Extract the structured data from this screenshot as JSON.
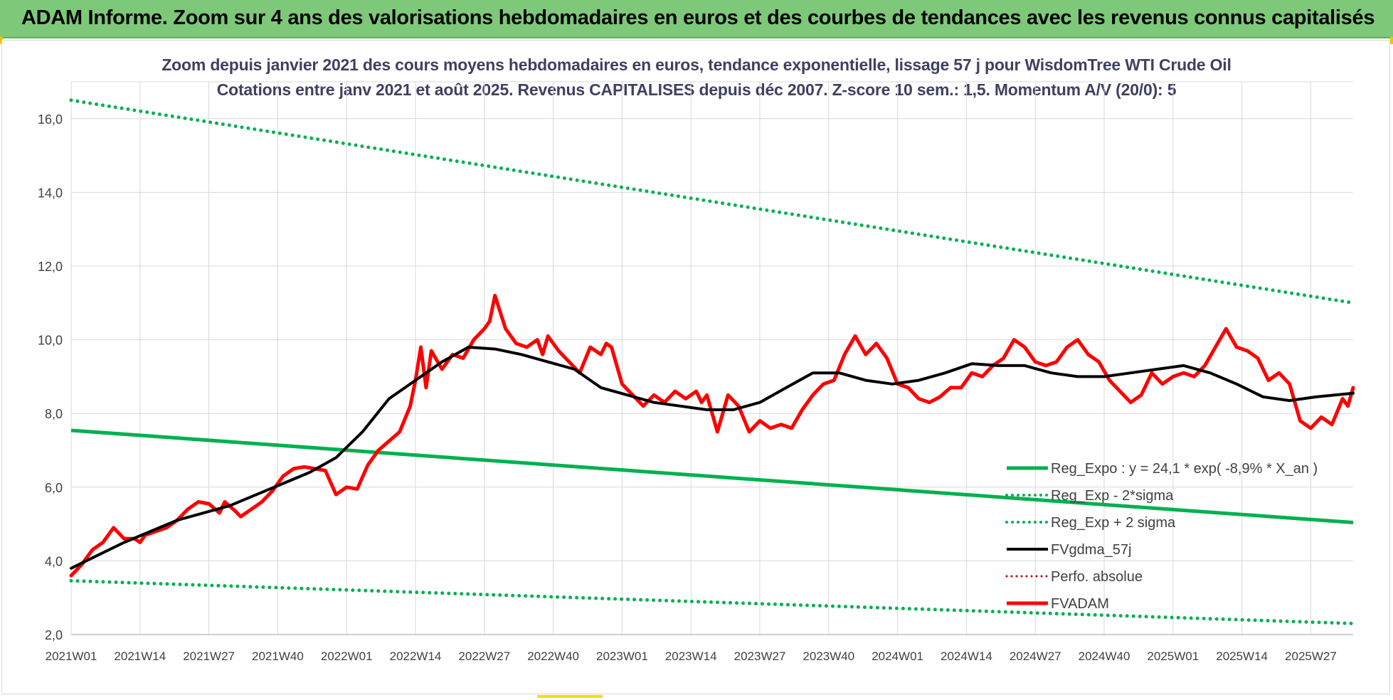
{
  "banner": {
    "title": "ADAM Informe. Zoom sur 4 ans des valorisations hebdomadaires en euros et des courbes de tendances avec les revenus connus capitalisés"
  },
  "colors": {
    "banner": "#7ec87a",
    "reg_expo": "#00b050",
    "fv_adam": "#ff0000",
    "fvgdma": "#000000",
    "perfo": "#c00000",
    "grid": "#d9d9d9"
  },
  "chart_data": {
    "type": "line",
    "title_line1": "Zoom depuis janvier 2021 des cours moyens hebdomadaires en euros, tendance exponentielle, lissage 57 j pour WisdomTree WTI Crude Oil",
    "title_line2": "Cotations entre janv 2021 et août 2025. Revenus CAPITALISES depuis déc 2007. Z-score 10 sem.: 1,5. Momentum A/V (20/0): 5",
    "xlabel": "",
    "ylabel": "",
    "ylim": [
      2.0,
      17.0
    ],
    "yticks": [
      "2,0",
      "4,0",
      "6,0",
      "8,0",
      "10,0",
      "12,0",
      "14,0",
      "16,0"
    ],
    "xticks": [
      "2021W01",
      "2021W14",
      "2021W27",
      "2021W40",
      "2022W01",
      "2022W14",
      "2022W27",
      "2022W40",
      "2023W01",
      "2023W14",
      "2023W27",
      "2023W40",
      "2024W01",
      "2024W14",
      "2024W27",
      "2024W40",
      "2025W01",
      "2025W14",
      "2025W27"
    ],
    "x_weeks_total": 242,
    "grid": true,
    "legend_position": "bottom-right",
    "legend": [
      {
        "label": "Reg_Expo : y = 24,1 * exp( -8,9% *  X_an )",
        "style": "solid-green"
      },
      {
        "label": "Reg_Exp - 2*sigma",
        "style": "dotted-green"
      },
      {
        "label": "Reg_Exp + 2 sigma",
        "style": "dotted-green"
      },
      {
        "label": "FVgdma_57j",
        "style": "solid-black"
      },
      {
        "label": "Perfo. absolue",
        "style": "dotted-red"
      },
      {
        "label": "FVADAM",
        "style": "solid-red"
      }
    ],
    "series": [
      {
        "name": "Reg_Expo : y = 24,1 * exp( -8,9% *  X_an )",
        "x": [
          0,
          242
        ],
        "values": [
          7.54,
          5.04
        ]
      },
      {
        "name": "Reg_Exp - 2*sigma",
        "x": [
          0,
          242
        ],
        "values": [
          3.46,
          2.3
        ]
      },
      {
        "name": "Reg_Exp + 2 sigma",
        "x": [
          0,
          242
        ],
        "values": [
          16.5,
          11.0
        ]
      },
      {
        "name": "FVgdma_57j",
        "x": [
          0,
          10,
          20,
          30,
          40,
          45,
          50,
          55,
          60,
          65,
          70,
          75,
          80,
          85,
          90,
          95,
          100,
          105,
          110,
          115,
          120,
          125,
          130,
          135,
          140,
          145,
          150,
          155,
          160,
          165,
          170,
          175,
          180,
          185,
          190,
          195,
          200,
          205,
          210,
          215,
          220,
          225,
          230,
          235,
          242
        ],
        "values": [
          3.8,
          4.5,
          5.1,
          5.5,
          6.1,
          6.4,
          6.8,
          7.5,
          8.4,
          8.9,
          9.4,
          9.8,
          9.75,
          9.6,
          9.4,
          9.2,
          8.7,
          8.5,
          8.3,
          8.2,
          8.1,
          8.1,
          8.3,
          8.7,
          9.1,
          9.1,
          8.9,
          8.8,
          8.9,
          9.1,
          9.35,
          9.3,
          9.3,
          9.1,
          9.0,
          9.0,
          9.1,
          9.2,
          9.3,
          9.1,
          8.8,
          8.45,
          8.35,
          8.45,
          8.55
        ]
      },
      {
        "name": "FVADAM",
        "x": [
          0,
          2,
          4,
          6,
          8,
          10,
          12,
          13,
          14,
          16,
          18,
          20,
          22,
          24,
          26,
          28,
          29,
          31,
          32,
          34,
          36,
          38,
          40,
          42,
          44,
          46,
          48,
          50,
          51,
          52,
          54,
          56,
          58,
          60,
          62,
          64,
          65,
          66,
          67,
          68,
          70,
          72,
          74,
          76,
          78,
          79,
          80,
          82,
          84,
          86,
          88,
          89,
          90,
          92,
          94,
          96,
          98,
          100,
          101,
          102,
          104,
          106,
          108,
          110,
          112,
          114,
          116,
          118,
          119,
          120,
          122,
          124,
          126,
          128,
          130,
          132,
          134,
          136,
          138,
          140,
          142,
          144,
          146,
          148,
          150,
          152,
          154,
          156,
          158,
          160,
          162,
          164,
          166,
          168,
          170,
          172,
          174,
          176,
          178,
          180,
          182,
          184,
          186,
          188,
          190,
          192,
          194,
          196,
          198,
          200,
          202,
          204,
          206,
          208,
          210,
          212,
          214,
          216,
          218,
          220,
          222,
          224,
          226,
          228,
          230,
          232,
          234,
          236,
          238,
          240,
          241,
          242
        ],
        "values": [
          3.6,
          3.9,
          4.3,
          4.5,
          4.9,
          4.6,
          4.6,
          4.5,
          4.7,
          4.8,
          4.9,
          5.1,
          5.4,
          5.6,
          5.55,
          5.3,
          5.6,
          5.35,
          5.2,
          5.4,
          5.6,
          5.9,
          6.3,
          6.5,
          6.55,
          6.5,
          6.45,
          5.8,
          5.9,
          6.0,
          5.95,
          6.6,
          7.0,
          7.25,
          7.5,
          8.2,
          8.9,
          9.8,
          8.7,
          9.7,
          9.2,
          9.6,
          9.5,
          10.0,
          10.3,
          10.5,
          11.2,
          10.3,
          9.9,
          9.8,
          10.0,
          9.6,
          10.1,
          9.7,
          9.4,
          9.1,
          9.8,
          9.6,
          9.9,
          9.8,
          8.8,
          8.5,
          8.2,
          8.5,
          8.3,
          8.6,
          8.4,
          8.6,
          8.3,
          8.5,
          7.5,
          8.5,
          8.2,
          7.5,
          7.8,
          7.6,
          7.7,
          7.6,
          8.1,
          8.5,
          8.8,
          8.9,
          9.6,
          10.1,
          9.6,
          9.9,
          9.5,
          8.8,
          8.7,
          8.4,
          8.3,
          8.45,
          8.7,
          8.7,
          9.1,
          9.0,
          9.3,
          9.5,
          10.0,
          9.8,
          9.4,
          9.3,
          9.4,
          9.8,
          10.0,
          9.6,
          9.4,
          8.9,
          8.6,
          8.3,
          8.5,
          9.1,
          8.8,
          9.0,
          9.1,
          9.0,
          9.3,
          9.8,
          10.3,
          9.8,
          9.7,
          9.5,
          8.9,
          9.1,
          8.8,
          7.8,
          7.6,
          7.9,
          7.7,
          8.4,
          8.2,
          8.7
        ]
      }
    ]
  }
}
